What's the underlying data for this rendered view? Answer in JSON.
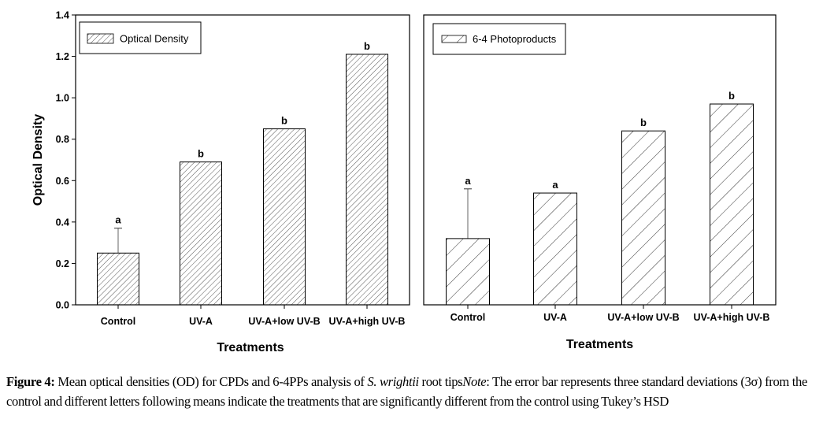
{
  "chart_data": [
    {
      "type": "bar",
      "categories": [
        "Control",
        "UV-A",
        "UV-A+low UV-B",
        "UV-A+high UV-B"
      ],
      "values": [
        0.25,
        0.69,
        0.85,
        1.21
      ],
      "error_upper": [
        0.12,
        null,
        null,
        null
      ],
      "significance_letters": [
        "a",
        "b",
        "b",
        "b"
      ],
      "legend": "Optical Density",
      "legend_position": "top-left",
      "xlabel": "Treatments",
      "ylabel": "Optical Density",
      "ylim": [
        0,
        1.4
      ],
      "yticks": [
        "0.0",
        "0.2",
        "0.4",
        "0.6",
        "0.8",
        "1.0",
        "1.2",
        "1.4"
      ],
      "fill": "dense diagonal hatch",
      "grid": false
    },
    {
      "type": "bar",
      "categories": [
        "Control",
        "UV-A",
        "UV-A+low UV-B",
        "UV-A+high UV-B"
      ],
      "values": [
        0.32,
        0.54,
        0.84,
        0.97
      ],
      "error_upper": [
        0.24,
        null,
        null,
        null
      ],
      "significance_letters": [
        "a",
        "a",
        "b",
        "b"
      ],
      "legend": "6-4 Photoproducts",
      "legend_position": "top-left",
      "xlabel": "Treatments",
      "ylim": [
        0,
        1.4
      ],
      "fill": "sparse diagonal hatch",
      "grid": false
    }
  ],
  "caption": {
    "label": "Figure 4:",
    "text1": " Mean optical densities (OD) for CPDs and 6-4PPs analysis of ",
    "species": "S. wrightii",
    "text2": " root tips",
    "note_label": "Note",
    "text3": ": The error bar represents three standard deviations (3σ) from the control and different letters following means indicate the treatments that are significantly different from the control using Tukey’s HSD"
  }
}
